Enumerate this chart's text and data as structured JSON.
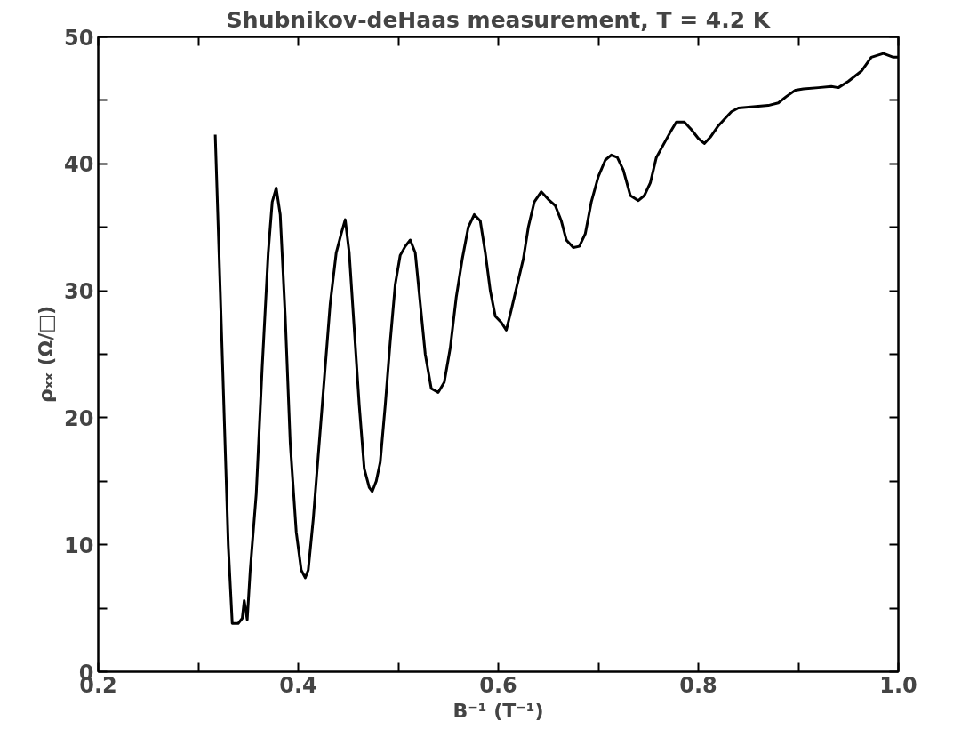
{
  "chart_data": {
    "type": "line",
    "title": "Shubnikov-deHaas measurement, T = 4.2 K",
    "xlabel": "B⁻¹ (T⁻¹)",
    "ylabel": "ρₓₓ (Ω/□)",
    "xlim": [
      0.2,
      1.0
    ],
    "ylim": [
      0,
      50
    ],
    "xticks": [
      0.2,
      {
        "value": 0.3,
        "label": null
      },
      0.4,
      {
        "value": 0.5,
        "label": null
      },
      0.6,
      {
        "value": 0.7,
        "label": null
      },
      0.8,
      {
        "value": 0.9,
        "label": null
      },
      {
        "value": 1.0,
        "label": "1.0"
      }
    ],
    "yticks": [
      0,
      {
        "value": 5,
        "label": null
      },
      10,
      {
        "value": 15,
        "label": null
      },
      20,
      {
        "value": 25,
        "label": null
      },
      30,
      {
        "value": 35,
        "label": null
      },
      40,
      {
        "value": 45,
        "label": null
      },
      50
    ],
    "marker": "none",
    "line_style": "solid",
    "series": [
      {
        "color": "#000000",
        "x": [
          0.317,
          0.322,
          0.33,
          0.334,
          0.34,
          0.344,
          0.346,
          0.349,
          0.352,
          0.358,
          0.364,
          0.37,
          0.374,
          0.378,
          0.382,
          0.387,
          0.392,
          0.398,
          0.403,
          0.407,
          0.41,
          0.415,
          0.42,
          0.426,
          0.432,
          0.438,
          0.443,
          0.447,
          0.451,
          0.456,
          0.461,
          0.466,
          0.471,
          0.474,
          0.478,
          0.482,
          0.487,
          0.492,
          0.497,
          0.502,
          0.507,
          0.512,
          0.517,
          0.522,
          0.527,
          0.533,
          0.54,
          0.546,
          0.552,
          0.558,
          0.564,
          0.57,
          0.576,
          0.582,
          0.587,
          0.592,
          0.597,
          0.603,
          0.608,
          0.613,
          0.619,
          0.625,
          0.63,
          0.636,
          0.643,
          0.65,
          0.657,
          0.663,
          0.668,
          0.675,
          0.681,
          0.687,
          0.693,
          0.7,
          0.707,
          0.713,
          0.719,
          0.725,
          0.732,
          0.74,
          0.746,
          0.752,
          0.758,
          0.765,
          0.772,
          0.778,
          0.786,
          0.793,
          0.8,
          0.806,
          0.812,
          0.82,
          0.827,
          0.833,
          0.84,
          0.855,
          0.87,
          0.88,
          0.888,
          0.897,
          0.905,
          0.92,
          0.933,
          0.94,
          0.95,
          0.963,
          0.973,
          0.985,
          0.995,
          1.0
        ],
        "values": [
          42.3,
          30,
          10,
          3.8,
          3.8,
          4.2,
          5.6,
          4.1,
          8,
          14,
          24,
          33,
          37,
          38.1,
          36,
          28,
          18,
          11,
          8,
          7.4,
          8,
          12,
          17,
          23,
          29,
          33,
          34.5,
          35.6,
          33,
          27,
          21,
          16,
          14.5,
          14.2,
          15,
          16.5,
          21,
          26,
          30.5,
          32.8,
          33.5,
          34,
          33,
          29,
          25,
          22.3,
          22.0,
          22.8,
          25.5,
          29.5,
          32.5,
          35,
          36,
          35.5,
          33,
          30,
          28,
          27.5,
          26.9,
          28.5,
          30.5,
          32.5,
          35,
          37,
          37.8,
          37.2,
          36.7,
          35.5,
          34,
          33.4,
          33.5,
          34.5,
          37,
          39,
          40.3,
          40.7,
          40.5,
          39.5,
          37.5,
          37.1,
          37.5,
          38.5,
          40.5,
          41.5,
          42.5,
          43.3,
          43.3,
          42.7,
          42,
          41.6,
          42.1,
          43,
          43.6,
          44.1,
          44.4,
          44.5,
          44.6,
          44.8,
          45.3,
          45.8,
          45.9,
          46,
          46.1,
          46.0,
          46.5,
          47.3,
          48.4,
          48.7,
          48.4,
          48.4
        ]
      }
    ]
  }
}
